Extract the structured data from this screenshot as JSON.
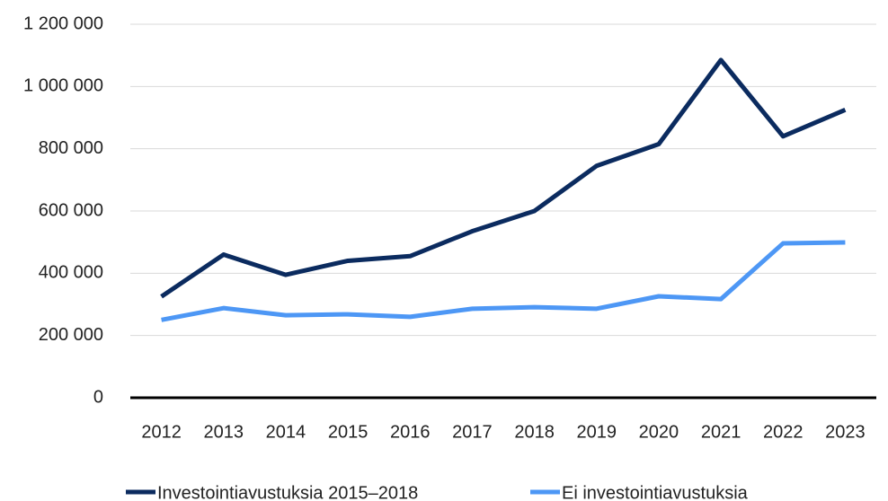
{
  "chart_data": {
    "type": "line",
    "categories": [
      "2012",
      "2013",
      "2014",
      "2015",
      "2016",
      "2017",
      "2018",
      "2019",
      "2020",
      "2021",
      "2022",
      "2023"
    ],
    "series": [
      {
        "name": "Investointiavustuksia 2015–2018",
        "color": "#0b2b5f",
        "values": [
          325000,
          460000,
          395000,
          440000,
          455000,
          535000,
          600000,
          745000,
          815000,
          1085000,
          840000,
          925000
        ]
      },
      {
        "name": "Ei investointiavustuksia",
        "color": "#4d97f5",
        "values": [
          250000,
          288000,
          265000,
          268000,
          260000,
          286000,
          291000,
          286000,
          326000,
          317000,
          496000,
          499000
        ]
      }
    ],
    "ylim": [
      0,
      1200000
    ],
    "yticks": [
      0,
      {
        "value": 200000,
        "label": "200 000"
      },
      {
        "value": 400000,
        "label": "400 000"
      },
      {
        "value": 600000,
        "label": "600 000"
      },
      {
        "value": 800000,
        "label": "800 000"
      },
      {
        "value": 1000000,
        "label": "1 000 000"
      },
      {
        "value": 1200000,
        "label": "1 200 000"
      }
    ],
    "grid": true,
    "legend": "bottom"
  }
}
